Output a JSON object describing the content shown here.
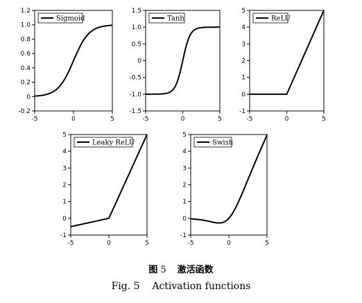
{
  "caption": {
    "cn_prefix": "图",
    "cn_number": "5",
    "cn_title": "激活函数",
    "en": "Fig. 5    Activation functions"
  },
  "chart_data": [
    {
      "type": "line",
      "legend": "Sigmoid",
      "function": "sigmoid",
      "xlim": [
        -5,
        5
      ],
      "ylim": [
        -0.2,
        1.2
      ],
      "x_ticks": [
        -5,
        0,
        5
      ],
      "y_ticks": [
        -0.2,
        0,
        0.2,
        0.4,
        0.6,
        0.8,
        1.0,
        1.2
      ],
      "y_tick_labels": [
        "-0.2",
        "0",
        "0.2",
        "0.4",
        "0.6",
        "0.8",
        "1.0",
        "1.2"
      ],
      "x_tick_labels": [
        "-5",
        "0",
        "5"
      ],
      "legend_position": "top-left",
      "x": [
        -5,
        -4,
        -3,
        -2,
        -1,
        0,
        1,
        2,
        3,
        4,
        5
      ],
      "y": [
        0.007,
        0.018,
        0.047,
        0.119,
        0.269,
        0.5,
        0.731,
        0.881,
        0.953,
        0.982,
        0.993
      ]
    },
    {
      "type": "line",
      "legend": "Tanh",
      "function": "tanh",
      "xlim": [
        -5,
        5
      ],
      "ylim": [
        -1.5,
        1.5
      ],
      "x_ticks": [
        -5,
        0,
        5
      ],
      "y_ticks": [
        -1.5,
        -1.0,
        -0.5,
        0,
        0.5,
        1.0,
        1.5
      ],
      "y_tick_labels": [
        "-1.5",
        "-1.0",
        "-0.5",
        "0",
        "0.5",
        "1.0",
        "1.5"
      ],
      "x_tick_labels": [
        "-5",
        "0",
        "5"
      ],
      "legend_position": "top-left",
      "x": [
        -5,
        -4,
        -3,
        -2,
        -1,
        0,
        1,
        2,
        3,
        4,
        5
      ],
      "y": [
        -1.0,
        -0.999,
        -0.995,
        -0.964,
        -0.762,
        0,
        0.762,
        0.964,
        0.995,
        0.999,
        1.0
      ]
    },
    {
      "type": "line",
      "legend": "ReLU",
      "function": "relu",
      "xlim": [
        -5,
        5
      ],
      "ylim": [
        -1,
        5
      ],
      "x_ticks": [
        -5,
        0,
        5
      ],
      "y_ticks": [
        -1,
        0,
        1,
        2,
        3,
        4,
        5
      ],
      "y_tick_labels": [
        "-1",
        "0",
        "1",
        "2",
        "3",
        "4",
        "5"
      ],
      "x_tick_labels": [
        "-5",
        "0",
        "5"
      ],
      "legend_position": "top-left",
      "x": [
        -5,
        0,
        5
      ],
      "y": [
        0,
        0,
        5
      ]
    },
    {
      "type": "line",
      "legend": "Leaky ReLU",
      "function": "leaky_relu",
      "xlim": [
        -5,
        5
      ],
      "ylim": [
        -1,
        5
      ],
      "x_ticks": [
        -5,
        0,
        5
      ],
      "y_ticks": [
        -1,
        0,
        1,
        2,
        3,
        4,
        5
      ],
      "y_tick_labels": [
        "-1",
        "0",
        "1",
        "2",
        "3",
        "4",
        "5"
      ],
      "x_tick_labels": [
        "-5",
        "0",
        "5"
      ],
      "legend_position": "top-left",
      "x": [
        -5,
        0,
        5
      ],
      "y": [
        -0.5,
        0,
        5
      ]
    },
    {
      "type": "line",
      "legend": "Swish",
      "function": "swish",
      "xlim": [
        -5,
        5
      ],
      "ylim": [
        -1,
        5
      ],
      "x_ticks": [
        -5,
        0,
        5
      ],
      "y_ticks": [
        -1,
        0,
        1,
        2,
        3,
        4,
        5
      ],
      "y_tick_labels": [
        "-1",
        "0",
        "1",
        "2",
        "3",
        "4",
        "5"
      ],
      "x_tick_labels": [
        "-5",
        "0",
        "5"
      ],
      "legend_position": "top-left",
      "x": [
        -5,
        -4,
        -3,
        -2,
        -1.5,
        -1,
        -0.5,
        0,
        1,
        2,
        3,
        4,
        5
      ],
      "y": [
        -0.033,
        -0.072,
        -0.142,
        -0.238,
        -0.274,
        -0.269,
        -0.189,
        0,
        0.731,
        1.762,
        2.858,
        3.928,
        4.967
      ]
    }
  ]
}
